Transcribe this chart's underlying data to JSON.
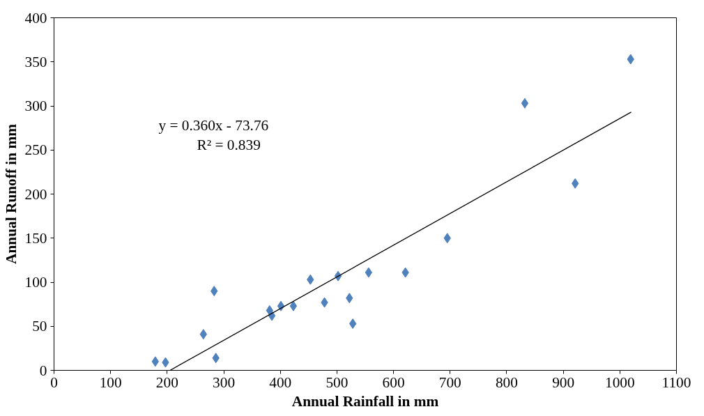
{
  "chart_data": {
    "type": "scatter",
    "xlabel": "Annual Rainfall in mm",
    "ylabel": "Annual Runoff in mm",
    "annotations": [
      "y = 0.360x - 73.76",
      "R² = 0.839"
    ],
    "xlim": [
      0,
      1100
    ],
    "ylim": [
      0,
      400
    ],
    "xticks": [
      0,
      100,
      200,
      300,
      400,
      500,
      600,
      700,
      800,
      900,
      1000,
      1100
    ],
    "yticks": [
      0,
      50,
      100,
      150,
      200,
      250,
      300,
      350,
      400
    ],
    "grid": false,
    "marker": "diamond",
    "series": [
      {
        "color": "#4f81bd",
        "x": [
          179,
          197,
          264,
          283,
          286,
          381,
          385,
          401,
          423,
          453,
          478,
          502,
          522,
          528,
          556,
          621,
          695,
          832,
          921,
          1019
        ],
        "values": [
          10,
          9,
          41,
          90,
          14,
          68,
          62,
          73,
          73,
          103,
          77,
          107,
          82,
          53,
          111,
          111,
          150,
          303,
          212,
          353
        ]
      },
      {
        "type": "line",
        "marker": "none",
        "line_style": "solid",
        "color": "#000000",
        "x": [
          205,
          1020
        ],
        "values": [
          0,
          293
        ]
      }
    ]
  }
}
